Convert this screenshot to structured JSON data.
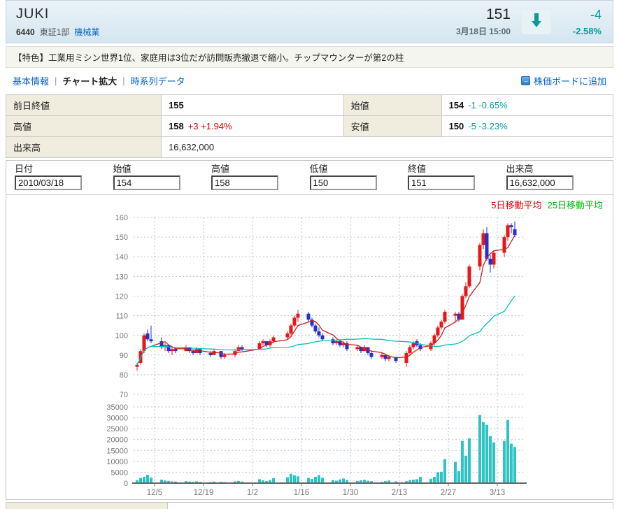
{
  "header": {
    "name": "JUKI",
    "code": "6440",
    "market": "東証1部",
    "industry": "機械業",
    "price": "151",
    "datetime": "3月18日 15:00",
    "change": "-4",
    "change_pct": "-2.58%",
    "direction": "down"
  },
  "icons": {
    "price_direction": "arrow-down",
    "board_add": "arrow-right-square"
  },
  "colors": {
    "accent_down": "#0a9a9a",
    "accent_up": "#d40000",
    "link": "#0663c7"
  },
  "feature_text": "【特色】工業用ミシン世界1位、家庭用は3位だが訪問販売撤退で縮小。チップマウンターが第2の柱",
  "tabs": [
    {
      "label": "基本情報",
      "active": false
    },
    {
      "label": "チャート拡大",
      "active": true
    },
    {
      "label": "時系列データ",
      "active": false
    }
  ],
  "board_link_label": "株価ボードに追加",
  "summary": {
    "rows": [
      [
        {
          "label": "前日終値",
          "value": "155",
          "change": ""
        },
        {
          "label": "始値",
          "value": "154",
          "change": "-1 -0.65%"
        }
      ],
      [
        {
          "label": "高値",
          "value": "158",
          "change": "+3 +1.94%"
        },
        {
          "label": "安値",
          "value": "150",
          "change": "-5 -3.23%"
        }
      ],
      [
        {
          "label": "出来高",
          "value": "16,632,000",
          "change": ""
        }
      ]
    ]
  },
  "inputs": [
    {
      "label": "日付",
      "value": "2010/03/18"
    },
    {
      "label": "始値",
      "value": "154"
    },
    {
      "label": "高値",
      "value": "158"
    },
    {
      "label": "低値",
      "value": "150"
    },
    {
      "label": "終値",
      "value": "151"
    },
    {
      "label": "出来高",
      "value": "16,632,000"
    }
  ],
  "legend": [
    {
      "label": "5日移動平均",
      "color": "#e00000"
    },
    {
      "label": "25日移動平均",
      "color": "#00b300"
    }
  ],
  "chart_data": {
    "type": "candlestick",
    "price_axis": {
      "min": 70,
      "max": 160,
      "tick_step": 10
    },
    "volume_axis": {
      "min": 0,
      "max": 35000,
      "tick_step": 5000
    },
    "x_axis": {
      "labels": [
        {
          "text": "12/5",
          "date": "2009-12-05"
        },
        {
          "text": "12/19",
          "date": "2009-12-19"
        },
        {
          "text": "1/2",
          "date": "2010-01-02"
        },
        {
          "text": "1/16",
          "date": "2010-01-16"
        },
        {
          "text": "1/30",
          "date": "2010-01-30"
        },
        {
          "text": "2/13",
          "date": "2010-02-13"
        },
        {
          "text": "2/27",
          "date": "2010-02-27"
        },
        {
          "text": "3/13",
          "date": "2010-03-13"
        }
      ]
    },
    "series": {
      "dates": [
        "2009-11-30",
        "2009-12-01",
        "2009-12-02",
        "2009-12-03",
        "2009-12-04",
        "2009-12-07",
        "2009-12-08",
        "2009-12-09",
        "2009-12-10",
        "2009-12-11",
        "2009-12-14",
        "2009-12-15",
        "2009-12-16",
        "2009-12-17",
        "2009-12-18",
        "2009-12-21",
        "2009-12-22",
        "2009-12-24",
        "2009-12-25",
        "2009-12-28",
        "2009-12-29",
        "2009-12-30",
        "2010-01-04",
        "2010-01-05",
        "2010-01-06",
        "2010-01-07",
        "2010-01-08",
        "2010-01-12",
        "2010-01-13",
        "2010-01-14",
        "2010-01-15",
        "2010-01-18",
        "2010-01-19",
        "2010-01-20",
        "2010-01-21",
        "2010-01-22",
        "2010-01-25",
        "2010-01-26",
        "2010-01-27",
        "2010-01-28",
        "2010-01-29",
        "2010-02-01",
        "2010-02-02",
        "2010-02-03",
        "2010-02-04",
        "2010-02-05",
        "2010-02-08",
        "2010-02-09",
        "2010-02-10",
        "2010-02-12",
        "2010-02-15",
        "2010-02-16",
        "2010-02-17",
        "2010-02-18",
        "2010-02-19",
        "2010-02-22",
        "2010-02-23",
        "2010-02-24",
        "2010-02-25",
        "2010-02-26",
        "2010-03-01",
        "2010-03-02",
        "2010-03-03",
        "2010-03-04",
        "2010-03-05",
        "2010-03-08",
        "2010-03-09",
        "2010-03-10",
        "2010-03-11",
        "2010-03-12",
        "2010-03-15",
        "2010-03-16",
        "2010-03-17",
        "2010-03-18"
      ],
      "open": [
        84,
        86,
        92,
        101,
        98,
        97,
        94,
        95,
        92,
        93,
        92,
        94,
        92,
        91,
        93,
        91,
        90,
        92,
        89,
        90,
        92,
        94,
        93,
        96,
        97,
        95,
        97,
        99,
        101,
        105,
        109,
        111,
        108,
        105,
        102,
        100,
        98,
        96,
        97,
        95,
        96,
        93,
        94,
        92,
        94,
        91,
        89,
        90,
        88,
        89,
        86,
        91,
        94,
        97,
        95,
        93,
        96,
        100,
        104,
        107,
        110,
        111,
        108,
        120,
        125,
        135,
        146,
        152,
        139,
        136,
        142,
        150,
        156,
        154
      ],
      "high": [
        86,
        93,
        101,
        103,
        105,
        99,
        96,
        95,
        94,
        94,
        95,
        94,
        93,
        94,
        93,
        92,
        93,
        92,
        91,
        93,
        95,
        95,
        97,
        98,
        97,
        98,
        100,
        102,
        106,
        110,
        113,
        112,
        109,
        106,
        104,
        101,
        99,
        98,
        98,
        97,
        97,
        95,
        94,
        95,
        94,
        92,
        91,
        90,
        90,
        89,
        92,
        95,
        97,
        98,
        96,
        97,
        101,
        105,
        108,
        113,
        112,
        112,
        121,
        127,
        136,
        147,
        154,
        155,
        141,
        143,
        151,
        157,
        157,
        158
      ],
      "low": [
        82,
        85,
        91,
        97,
        96,
        93,
        92,
        91,
        90,
        91,
        92,
        91,
        90,
        91,
        90,
        89,
        90,
        88,
        88,
        89,
        92,
        92,
        93,
        95,
        94,
        94,
        96,
        98,
        100,
        104,
        107,
        107,
        104,
        101,
        99,
        97,
        95,
        95,
        94,
        94,
        92,
        92,
        91,
        92,
        90,
        88,
        88,
        87,
        87,
        86,
        84,
        90,
        93,
        94,
        92,
        92,
        95,
        99,
        103,
        106,
        107,
        107,
        108,
        119,
        124,
        133,
        144,
        138,
        132,
        134,
        140,
        148,
        152,
        150
      ],
      "close": [
        85,
        92,
        100,
        98,
        97,
        94,
        95,
        92,
        93,
        92,
        94,
        92,
        91,
        93,
        91,
        90,
        92,
        89,
        90,
        92,
        94,
        93,
        96,
        97,
        95,
        97,
        99,
        101,
        105,
        109,
        111,
        108,
        105,
        102,
        100,
        98,
        96,
        97,
        95,
        96,
        93,
        94,
        92,
        94,
        91,
        89,
        90,
        88,
        89,
        87,
        91,
        94,
        96,
        95,
        93,
        96,
        100,
        104,
        107,
        112,
        111,
        108,
        120,
        125,
        135,
        146,
        152,
        139,
        136,
        142,
        150,
        156,
        155,
        151
      ],
      "volume": [
        1300,
        2400,
        2900,
        3800,
        2600,
        1600,
        1200,
        1000,
        800,
        700,
        900,
        700,
        600,
        800,
        600,
        500,
        700,
        600,
        500,
        800,
        1000,
        700,
        1800,
        1300,
        900,
        1400,
        2300,
        2700,
        4300,
        3600,
        3100,
        2400,
        1900,
        2900,
        3700,
        2500,
        1400,
        1100,
        1700,
        2100,
        1500,
        1000,
        1300,
        1500,
        1100,
        900,
        600,
        900,
        1200,
        800,
        900,
        1400,
        1600,
        1800,
        2900,
        2000,
        2900,
        5000,
        5200,
        11000,
        9700,
        5500,
        19400,
        12600,
        20600,
        31300,
        28100,
        26800,
        21600,
        18700,
        19400,
        29000,
        18100,
        16632
      ]
    },
    "moving_averages": [
      {
        "name": "5日移動平均",
        "window": 5,
        "color": "#cc2020"
      },
      {
        "name": "25日移動平均",
        "window": 25,
        "color": "#00bfbf"
      }
    ],
    "colors": {
      "up": "#e81717",
      "down": "#2230cc",
      "volume": "#2cc5c5",
      "grid": "#b8c4d6",
      "axis": "#666666"
    }
  }
}
